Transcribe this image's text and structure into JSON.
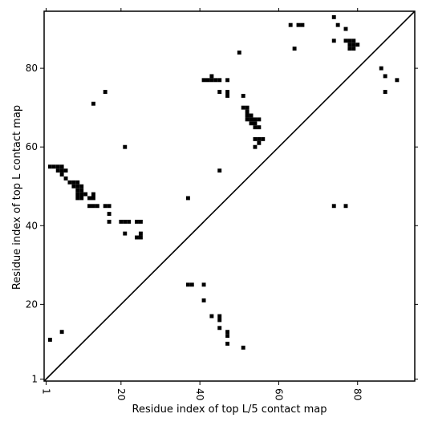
{
  "chart_data": {
    "type": "scatter",
    "title": "",
    "xlabel": "Residue index of top L/5 contact map",
    "ylabel": "Residue index of top L contact map",
    "xlim": [
      0.5,
      94.5
    ],
    "ylim": [
      0.5,
      94.5
    ],
    "x_ticks": [
      {
        "value": 1,
        "label": "1"
      },
      {
        "value": 20,
        "label": "20"
      },
      {
        "value": 40,
        "label": "40"
      },
      {
        "value": 60,
        "label": "60"
      },
      {
        "value": 80,
        "label": "80"
      }
    ],
    "y_ticks": [
      {
        "value": 1,
        "label": "1"
      },
      {
        "value": 20,
        "label": "20"
      },
      {
        "value": 40,
        "label": "40"
      },
      {
        "value": 60,
        "label": "60"
      },
      {
        "value": 80,
        "label": "80"
      }
    ],
    "diagonal": true,
    "marker_color": "#000000",
    "upper_points": [
      [
        63,
        91
      ],
      [
        65,
        91
      ],
      [
        66,
        91
      ],
      [
        74,
        93
      ],
      [
        75,
        91
      ],
      [
        77,
        90
      ],
      [
        64,
        85
      ],
      [
        74,
        87
      ],
      [
        77,
        87
      ],
      [
        78,
        87
      ],
      [
        79,
        87
      ],
      [
        78,
        86
      ],
      [
        79,
        86
      ],
      [
        80,
        86
      ],
      [
        78,
        85
      ],
      [
        79,
        85
      ],
      [
        86,
        80
      ],
      [
        87,
        78
      ],
      [
        90,
        77
      ],
      [
        87,
        74
      ],
      [
        50,
        84
      ],
      [
        41,
        77
      ],
      [
        42,
        77
      ],
      [
        43,
        77
      ],
      [
        44,
        77
      ],
      [
        45,
        77
      ],
      [
        47,
        77
      ],
      [
        43,
        78
      ],
      [
        45,
        74
      ],
      [
        47,
        74
      ],
      [
        47,
        73
      ],
      [
        51,
        73
      ],
      [
        51,
        70
      ],
      [
        52,
        70
      ],
      [
        52,
        69
      ],
      [
        52,
        68
      ],
      [
        53,
        68
      ],
      [
        52,
        67
      ],
      [
        53,
        67
      ],
      [
        54,
        67
      ],
      [
        55,
        67
      ],
      [
        53,
        66
      ],
      [
        54,
        66
      ],
      [
        54,
        65
      ],
      [
        55,
        65
      ],
      [
        54,
        62
      ],
      [
        55,
        62
      ],
      [
        56,
        62
      ],
      [
        55,
        61
      ],
      [
        54,
        60
      ],
      [
        45,
        54
      ],
      [
        16,
        74
      ],
      [
        13,
        71
      ],
      [
        21,
        60
      ],
      [
        2,
        55
      ],
      [
        3,
        55
      ],
      [
        4,
        55
      ],
      [
        5,
        55
      ],
      [
        4,
        54
      ],
      [
        5,
        54
      ],
      [
        6,
        54
      ],
      [
        5,
        53
      ],
      [
        6,
        52
      ],
      [
        7,
        51
      ],
      [
        8,
        51
      ],
      [
        9,
        51
      ],
      [
        8,
        50
      ],
      [
        9,
        50
      ],
      [
        10,
        50
      ],
      [
        9,
        49
      ],
      [
        10,
        49
      ],
      [
        9,
        48
      ],
      [
        10,
        48
      ],
      [
        11,
        48
      ],
      [
        9,
        47
      ],
      [
        10,
        47
      ],
      [
        12,
        47
      ],
      [
        13,
        47
      ],
      [
        13,
        48
      ],
      [
        12,
        45
      ],
      [
        13,
        45
      ],
      [
        14,
        45
      ],
      [
        16,
        45
      ],
      [
        17,
        45
      ],
      [
        17,
        43
      ],
      [
        17,
        41
      ],
      [
        20,
        41
      ],
      [
        21,
        41
      ],
      [
        22,
        41
      ],
      [
        24,
        41
      ],
      [
        25,
        41
      ],
      [
        21,
        38
      ],
      [
        25,
        38
      ],
      [
        24,
        37
      ],
      [
        25,
        37
      ],
      [
        37,
        47
      ]
    ],
    "lower_points": [
      [
        74,
        45
      ],
      [
        77,
        45
      ],
      [
        37,
        25
      ],
      [
        38,
        25
      ],
      [
        41,
        25
      ],
      [
        41,
        21
      ],
      [
        43,
        17
      ],
      [
        45,
        17
      ],
      [
        45,
        16
      ],
      [
        45,
        14
      ],
      [
        47,
        13
      ],
      [
        47,
        12
      ],
      [
        47,
        10
      ],
      [
        51,
        9
      ],
      [
        5,
        13
      ],
      [
        2,
        11
      ]
    ]
  }
}
